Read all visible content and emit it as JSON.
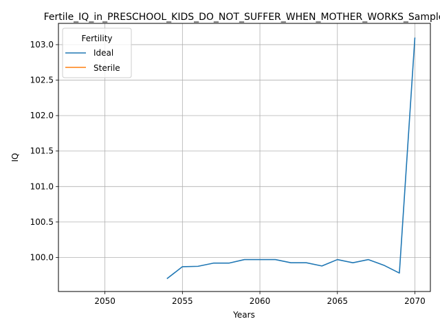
{
  "chart_data": {
    "type": "line",
    "title": "Fertile_IQ_in_PRESCHOOL_KIDS_DO_NOT_SUFFER_WHEN_MOTHER_WORKS_Sample",
    "xlabel": "Years",
    "ylabel": "IQ",
    "xlim": [
      2047,
      2071
    ],
    "ylim": [
      99.52,
      103.3
    ],
    "xticks": [
      2050,
      2055,
      2060,
      2065,
      2070
    ],
    "yticks": [
      100.0,
      100.5,
      101.0,
      101.5,
      102.0,
      102.5,
      103.0
    ],
    "ytick_labels": [
      "100.0",
      "100.5",
      "101.0",
      "101.5",
      "102.0",
      "102.5",
      "103.0"
    ],
    "grid": true,
    "legend": {
      "title": "Fertility",
      "placement": "top-left"
    },
    "series": [
      {
        "name": "Ideal",
        "color": "#1f77b4",
        "x": [
          2054,
          2055,
          2056,
          2057,
          2058,
          2059,
          2060,
          2061,
          2062,
          2063,
          2064,
          2065,
          2066,
          2067,
          2068,
          2069,
          2070
        ],
        "y": [
          99.7,
          99.87,
          99.875,
          99.92,
          99.92,
          99.97,
          99.97,
          99.97,
          99.925,
          99.925,
          99.88,
          99.97,
          99.925,
          99.97,
          99.89,
          99.78,
          103.1
        ]
      },
      {
        "name": "Sterile",
        "color": "#ff7f0e",
        "x": [],
        "y": []
      }
    ]
  }
}
